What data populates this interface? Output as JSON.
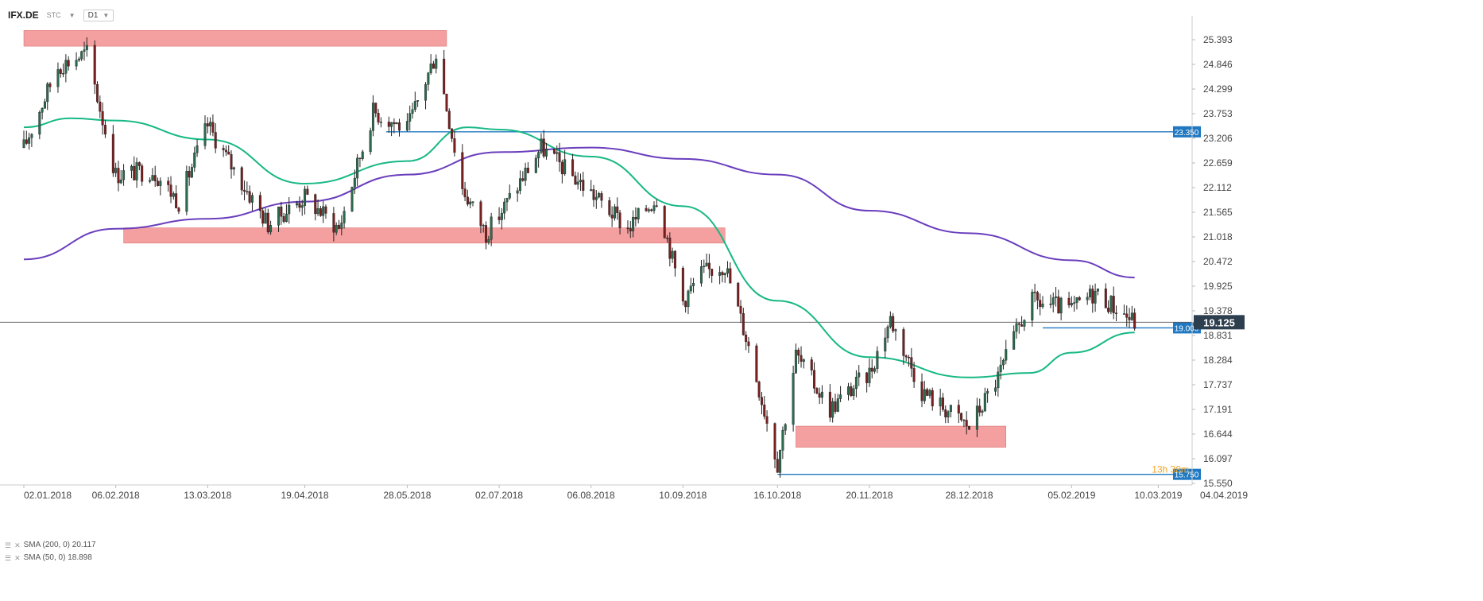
{
  "header": {
    "symbol": "IFX.DE",
    "source": "STC",
    "timeframe": "D1"
  },
  "indicators": [
    {
      "label": "SMA (200, 0) 20.117",
      "color": "#6a3ebd"
    },
    {
      "label": "SMA (50, 0) 18.898",
      "color": "#17b885"
    }
  ],
  "chart_data": {
    "type": "candlestick",
    "x_labels": [
      "02.01.2018",
      "06.02.2018",
      "13.03.2018",
      "19.04.2018",
      "28.05.2018",
      "02.07.2018",
      "06.08.2018",
      "10.09.2018",
      "16.10.2018",
      "20.11.2018",
      "28.12.2018",
      "05.02.2019",
      "10.03.2019",
      "04.04.2019"
    ],
    "y_ticks": [
      "25.393",
      "24.846",
      "24.299",
      "23.753",
      "23.206",
      "22.659",
      "22.112",
      "21.565",
      "21.018",
      "20.472",
      "19.925",
      "19.378",
      "18.831",
      "18.284",
      "17.737",
      "17.191",
      "16.644",
      "16.097",
      "15.550"
    ],
    "ylim": [
      15.55,
      25.393
    ],
    "current_price": {
      "label": "19.125",
      "value": 19.125
    },
    "overlay_text": "13h 38m",
    "levels": [
      {
        "label": "23.350",
        "value": 23.35
      },
      {
        "label": "19.000",
        "value": 19.0
      },
      {
        "label": "15.750",
        "value": 15.75
      }
    ],
    "zones": [
      {
        "from_date": "02.01.2018",
        "to_date": "12.06.2018",
        "low": 25.25,
        "high": 25.6
      },
      {
        "from_date": "09.02.2018",
        "to_date": "26.09.2018",
        "low": 20.88,
        "high": 21.22
      },
      {
        "from_date": "23.10.2018",
        "to_date": "11.01.2019",
        "low": 16.35,
        "high": 16.82
      }
    ],
    "sma_200_path": [
      [
        "02.01.2018",
        20.52
      ],
      [
        "06.02.2018",
        21.2
      ],
      [
        "13.03.2018",
        21.42
      ],
      [
        "19.04.2018",
        21.8
      ],
      [
        "28.05.2018",
        22.4
      ],
      [
        "02.07.2018",
        22.9
      ],
      [
        "06.08.2018",
        23.0
      ],
      [
        "10.09.2018",
        22.75
      ],
      [
        "16.10.2018",
        22.4
      ],
      [
        "20.11.2018",
        21.6
      ],
      [
        "28.12.2018",
        21.1
      ],
      [
        "05.02.2019",
        20.5
      ],
      [
        "01.03.2019",
        20.117
      ]
    ],
    "sma_50_path": [
      [
        "02.01.2018",
        23.45
      ],
      [
        "20.01.2018",
        23.65
      ],
      [
        "06.02.2018",
        23.6
      ],
      [
        "13.03.2018",
        23.18
      ],
      [
        "19.04.2018",
        22.2
      ],
      [
        "28.05.2018",
        22.7
      ],
      [
        "20.06.2018",
        23.45
      ],
      [
        "02.07.2018",
        23.4
      ],
      [
        "06.08.2018",
        22.8
      ],
      [
        "10.09.2018",
        21.7
      ],
      [
        "16.10.2018",
        19.6
      ],
      [
        "20.11.2018",
        18.35
      ],
      [
        "28.12.2018",
        17.9
      ],
      [
        "20.01.2019",
        18.0
      ],
      [
        "05.02.2019",
        18.45
      ],
      [
        "01.03.2019",
        18.898
      ]
    ],
    "candle_path": [
      [
        "02.01.2018",
        23.0
      ],
      [
        "15.01.2018",
        24.8
      ],
      [
        "26.01.2018",
        25.1
      ],
      [
        "06.02.2018",
        22.4
      ],
      [
        "20.02.2018",
        22.5
      ],
      [
        "02.03.2018",
        21.8
      ],
      [
        "13.03.2018",
        23.5
      ],
      [
        "22.03.2018",
        22.6
      ],
      [
        "05.04.2018",
        21.3
      ],
      [
        "19.04.2018",
        21.9
      ],
      [
        "02.05.2018",
        21.2
      ],
      [
        "15.05.2018",
        23.8
      ],
      [
        "28.05.2018",
        23.4
      ],
      [
        "08.06.2018",
        25.1
      ],
      [
        "18.06.2018",
        22.1
      ],
      [
        "27.06.2018",
        21.1
      ],
      [
        "02.07.2018",
        21.5
      ],
      [
        "18.07.2018",
        23.0
      ],
      [
        "06.08.2018",
        22.0
      ],
      [
        "20.08.2018",
        21.2
      ],
      [
        "31.08.2018",
        21.9
      ],
      [
        "10.09.2018",
        19.6
      ],
      [
        "17.09.2018",
        20.2
      ],
      [
        "26.09.2018",
        20.4
      ],
      [
        "05.10.2018",
        18.6
      ],
      [
        "16.10.2018",
        16.0
      ],
      [
        "23.10.2018",
        18.4
      ],
      [
        "05.11.2018",
        17.2
      ],
      [
        "20.11.2018",
        18.0
      ],
      [
        "28.11.2018",
        19.2
      ],
      [
        "10.12.2018",
        17.6
      ],
      [
        "28.12.2018",
        16.8
      ],
      [
        "08.01.2019",
        17.9
      ],
      [
        "20.01.2019",
        19.6
      ],
      [
        "05.02.2019",
        19.4
      ],
      [
        "14.02.2019",
        19.8
      ],
      [
        "01.03.2019",
        19.125
      ]
    ]
  }
}
